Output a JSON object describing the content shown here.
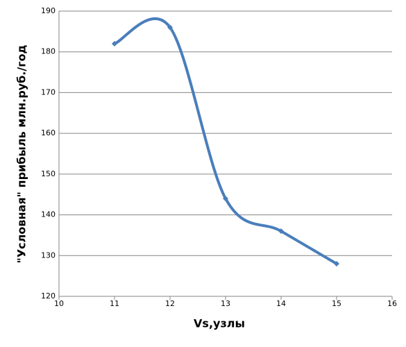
{
  "chart_data": {
    "type": "line",
    "x_label": "Vs,узлы",
    "y_label": "\"Условная\" прибыль млн.руб./год",
    "x": [
      11,
      12,
      13,
      14,
      15
    ],
    "values": [
      182,
      186,
      144,
      136,
      128
    ],
    "color": "#4a7ebb",
    "smooth": true,
    "xlim": [
      10,
      16
    ],
    "xticks": [
      10,
      11,
      12,
      13,
      14,
      15,
      16
    ],
    "ylim": [
      120,
      190
    ],
    "yticks": [
      120,
      130,
      140,
      150,
      160,
      170,
      180,
      190
    ],
    "grid": true
  }
}
